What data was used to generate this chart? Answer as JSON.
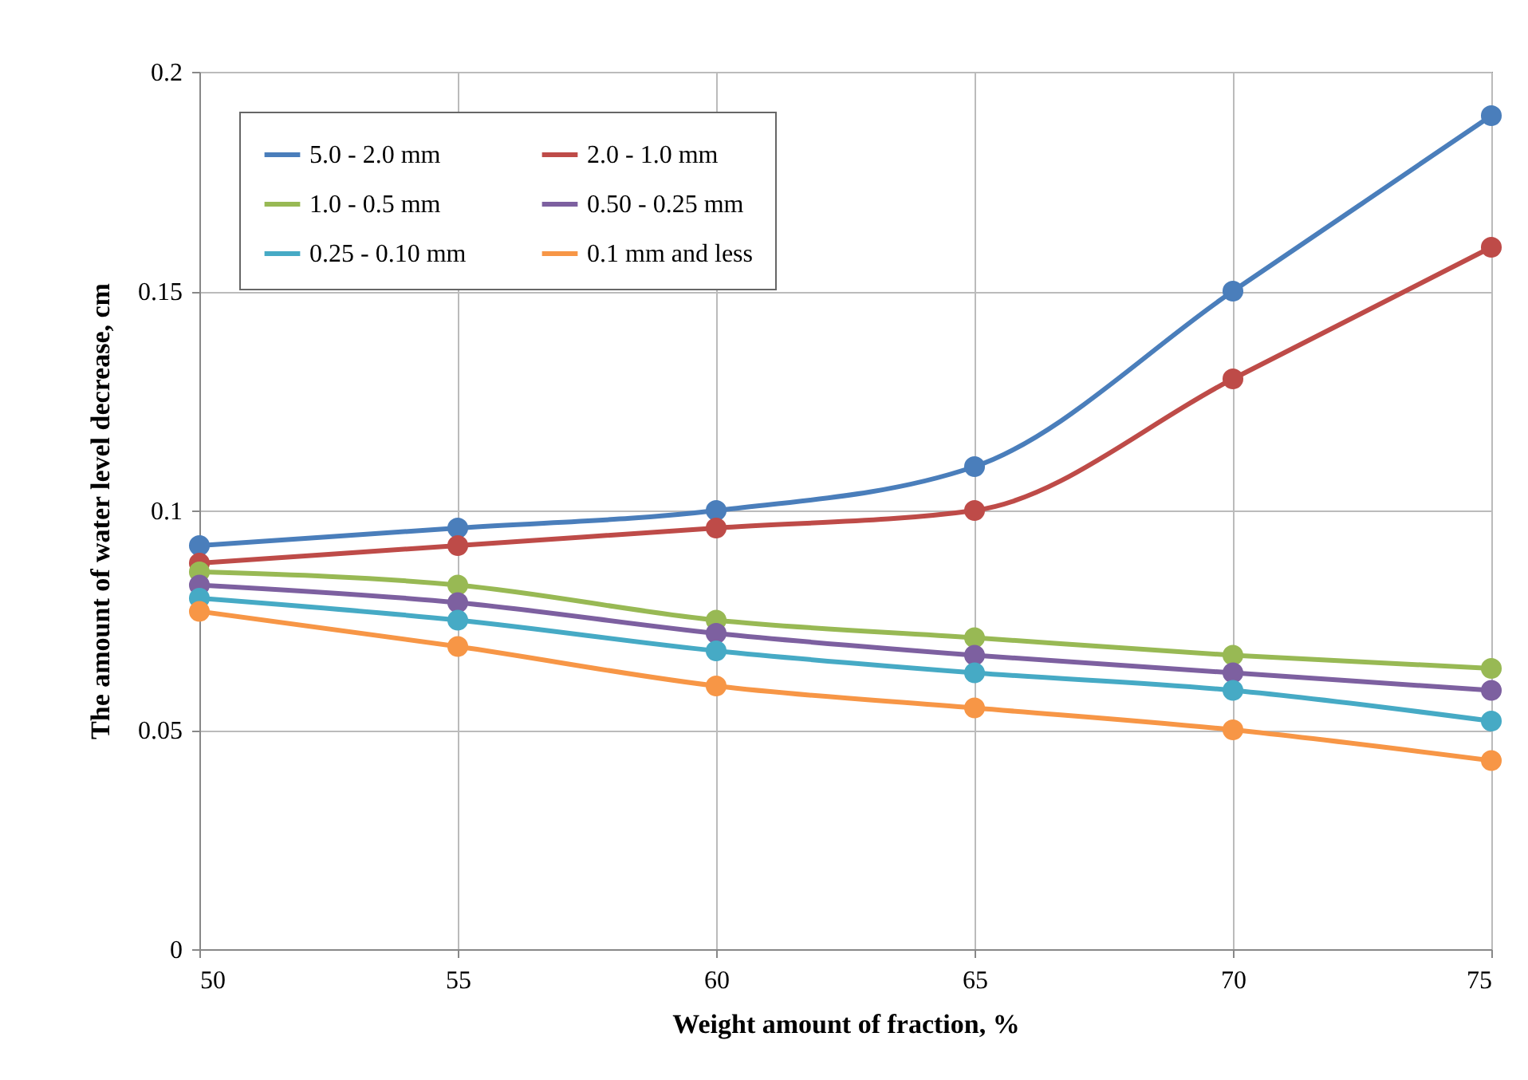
{
  "chart_data": {
    "type": "line",
    "xlabel": "Weight amount of fraction, %",
    "ylabel": "The amount of water level decrease, cm",
    "x": [
      50,
      55,
      60,
      65,
      70,
      75
    ],
    "series": [
      {
        "name": "5.0 - 2.0 mm",
        "color": "#4a7ebb",
        "values": [
          0.092,
          0.096,
          0.1,
          0.11,
          0.15,
          0.19
        ]
      },
      {
        "name": "2.0 - 1.0 mm",
        "color": "#be4b48",
        "values": [
          0.088,
          0.092,
          0.096,
          0.1,
          0.13,
          0.16
        ]
      },
      {
        "name": "1.0 - 0.5 mm",
        "color": "#98b954",
        "values": [
          0.086,
          0.083,
          0.075,
          0.071,
          0.067,
          0.064
        ]
      },
      {
        "name": "0.50 - 0.25 mm",
        "color": "#7d60a0",
        "values": [
          0.083,
          0.079,
          0.072,
          0.067,
          0.063,
          0.059
        ]
      },
      {
        "name": "0.25 - 0.10 mm",
        "color": "#46aac5",
        "values": [
          0.08,
          0.075,
          0.068,
          0.063,
          0.059,
          0.052
        ]
      },
      {
        "name": "0.1 mm and less",
        "color": "#f79646",
        "values": [
          0.077,
          0.069,
          0.06,
          0.055,
          0.05,
          0.043
        ]
      }
    ],
    "xlim": [
      50,
      75
    ],
    "xticks": [
      50,
      55,
      60,
      65,
      70,
      75
    ],
    "ylim": [
      0,
      0.2
    ],
    "yticks": [
      0,
      0.05,
      0.1,
      0.15,
      0.2
    ],
    "grid": true,
    "legend": "top left",
    "marker": "circle",
    "line_style": "solid"
  }
}
